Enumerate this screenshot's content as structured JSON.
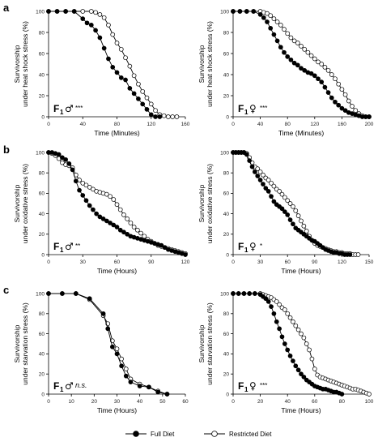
{
  "panel_letters": [
    "a",
    "b",
    "c"
  ],
  "legend": {
    "full": "Full Diet",
    "restricted": "Restricted Diet",
    "full_color": "#000000",
    "restricted_color": "#ffffff"
  },
  "chart_data": [
    {
      "type": "line",
      "panel": "a",
      "ylabel_lines": [
        "Survivorship",
        "under heat shock stress (%)"
      ],
      "xlabel": "Time (Minutes)",
      "xlim": [
        0,
        160
      ],
      "ylim": [
        0,
        100
      ],
      "xticks": [
        0,
        40,
        80,
        120,
        160
      ],
      "yticks": [
        0,
        20,
        40,
        60,
        80,
        100
      ],
      "annotation": {
        "main": "F",
        "sub": "1",
        "sym": "♂",
        "sig": "***",
        "sig_italic": false
      },
      "series": [
        {
          "name": "Full Diet",
          "x": [
            0,
            10,
            20,
            30,
            40,
            45,
            50,
            55,
            60,
            65,
            70,
            75,
            80,
            85,
            90,
            95,
            100,
            105,
            110,
            115,
            120,
            125,
            130
          ],
          "y": [
            100,
            100,
            100,
            100,
            93,
            89,
            87,
            82,
            75,
            65,
            55,
            47,
            42,
            37,
            35,
            27,
            22,
            17,
            12,
            7,
            2,
            0,
            0
          ]
        },
        {
          "name": "Restricted Diet",
          "x": [
            0,
            10,
            20,
            30,
            40,
            50,
            55,
            60,
            65,
            70,
            75,
            80,
            85,
            90,
            95,
            100,
            105,
            110,
            115,
            120,
            125,
            130,
            135,
            140,
            145,
            150
          ],
          "y": [
            100,
            100,
            100,
            100,
            100,
            100,
            99,
            97,
            94,
            87,
            78,
            70,
            64,
            56,
            48,
            39,
            31,
            24,
            18,
            12,
            6,
            2,
            1,
            0,
            0,
            0
          ]
        }
      ]
    },
    {
      "type": "line",
      "panel": "a",
      "ylabel_lines": [
        "Survivorship",
        "under heat shock stress (%)"
      ],
      "xlabel": "Time (Minutes)",
      "xlim": [
        0,
        200
      ],
      "ylim": [
        0,
        100
      ],
      "xticks": [
        0,
        40,
        80,
        120,
        160,
        200
      ],
      "yticks": [
        0,
        20,
        40,
        60,
        80,
        100
      ],
      "annotation": {
        "main": "F",
        "sub": "1",
        "sym": "♀",
        "sig": "***",
        "sig_italic": false
      },
      "series": [
        {
          "name": "Full Diet",
          "x": [
            0,
            10,
            20,
            30,
            40,
            45,
            50,
            55,
            60,
            65,
            70,
            75,
            80,
            85,
            90,
            95,
            100,
            105,
            110,
            115,
            120,
            125,
            130,
            135,
            140,
            145,
            150,
            155,
            160,
            165,
            170,
            175,
            180,
            185,
            190,
            195,
            200
          ],
          "y": [
            100,
            100,
            100,
            100,
            97,
            94,
            90,
            84,
            78,
            72,
            66,
            61,
            57,
            54,
            51,
            49,
            46,
            44,
            42,
            41,
            39,
            36,
            33,
            28,
            23,
            18,
            14,
            11,
            8,
            6,
            4,
            3,
            2,
            1,
            0,
            0,
            0
          ]
        },
        {
          "name": "Restricted Diet",
          "x": [
            0,
            10,
            20,
            30,
            40,
            45,
            50,
            55,
            60,
            65,
            70,
            75,
            80,
            85,
            90,
            95,
            100,
            105,
            110,
            115,
            120,
            125,
            130,
            135,
            140,
            145,
            150,
            155,
            160,
            165,
            170,
            175,
            180,
            185,
            190,
            195,
            200
          ],
          "y": [
            100,
            100,
            100,
            100,
            100,
            99,
            98,
            96,
            93,
            90,
            87,
            83,
            79,
            75,
            72,
            70,
            67,
            64,
            61,
            58,
            55,
            52,
            50,
            47,
            44,
            40,
            36,
            31,
            26,
            21,
            15,
            10,
            6,
            3,
            1,
            0,
            0
          ]
        }
      ]
    },
    {
      "type": "line",
      "panel": "b",
      "ylabel_lines": [
        "Survivorship",
        "under oxidative stress (%)"
      ],
      "xlabel": "Time (Hours)",
      "xlim": [
        0,
        120
      ],
      "ylim": [
        0,
        100
      ],
      "xticks": [
        0,
        30,
        60,
        90,
        120
      ],
      "yticks": [
        0,
        20,
        40,
        60,
        80,
        100
      ],
      "annotation": {
        "main": "F",
        "sub": "1",
        "sym": "♂",
        "sig": "**",
        "sig_italic": false
      },
      "series": [
        {
          "name": "Full Diet",
          "x": [
            0,
            3,
            6,
            9,
            12,
            15,
            18,
            21,
            24,
            27,
            30,
            33,
            36,
            39,
            42,
            45,
            48,
            51,
            54,
            57,
            60,
            63,
            66,
            69,
            72,
            75,
            78,
            81,
            84,
            87,
            90,
            93,
            96,
            99,
            102,
            105,
            108,
            111,
            114,
            117,
            120
          ],
          "y": [
            100,
            100,
            99,
            98,
            95,
            93,
            89,
            83,
            72,
            63,
            58,
            53,
            48,
            44,
            40,
            37,
            35,
            33,
            31,
            29,
            27,
            24,
            22,
            20,
            18,
            17,
            16,
            15,
            14,
            13,
            12,
            11,
            10,
            9,
            7,
            5,
            4,
            3,
            2,
            1,
            0
          ]
        },
        {
          "name": "Restricted Diet",
          "x": [
            0,
            3,
            6,
            9,
            12,
            15,
            18,
            21,
            24,
            27,
            30,
            33,
            36,
            39,
            42,
            45,
            48,
            51,
            54,
            57,
            60,
            63,
            66,
            69,
            72,
            75,
            78,
            81,
            84,
            87,
            90,
            93,
            96,
            99,
            102,
            105,
            108,
            111,
            114,
            117,
            120
          ],
          "y": [
            100,
            99,
            97,
            94,
            90,
            88,
            87,
            85,
            78,
            73,
            70,
            68,
            66,
            64,
            62,
            61,
            60,
            59,
            57,
            54,
            49,
            44,
            39,
            35,
            31,
            27,
            24,
            21,
            18,
            15,
            13,
            11,
            9,
            8,
            7,
            6,
            5,
            4,
            3,
            2,
            1
          ]
        }
      ]
    },
    {
      "type": "line",
      "panel": "b",
      "ylabel_lines": [
        "Survivorship",
        "under oxidative stress (%)"
      ],
      "xlabel": "Time (Hours)",
      "xlim": [
        0,
        150
      ],
      "ylim": [
        0,
        100
      ],
      "xticks": [
        0,
        30,
        60,
        90,
        120,
        150
      ],
      "yticks": [
        0,
        20,
        40,
        60,
        80,
        100
      ],
      "annotation": {
        "main": "F",
        "sub": "1",
        "sym": "♀",
        "sig": "*",
        "sig_italic": false
      },
      "series": [
        {
          "name": "Full Diet",
          "x": [
            0,
            3,
            6,
            9,
            12,
            15,
            18,
            21,
            24,
            27,
            30,
            33,
            36,
            39,
            42,
            45,
            48,
            51,
            54,
            57,
            60,
            63,
            66,
            69,
            72,
            75,
            78,
            81,
            84,
            87,
            90,
            93,
            96,
            99,
            102,
            105,
            108,
            111,
            114,
            117,
            120,
            123,
            126,
            129
          ],
          "y": [
            100,
            100,
            100,
            100,
            100,
            98,
            92,
            86,
            81,
            77,
            73,
            69,
            65,
            62,
            57,
            52,
            49,
            47,
            45,
            42,
            39,
            34,
            30,
            26,
            24,
            22,
            20,
            18,
            16,
            14,
            13,
            11,
            9,
            7,
            5,
            4,
            3,
            2,
            2,
            1,
            1,
            0,
            0,
            0
          ]
        },
        {
          "name": "Restricted Diet",
          "x": [
            0,
            3,
            6,
            9,
            12,
            15,
            18,
            21,
            24,
            27,
            30,
            33,
            36,
            39,
            42,
            45,
            48,
            51,
            54,
            57,
            60,
            63,
            66,
            69,
            72,
            75,
            78,
            81,
            84,
            87,
            90,
            93,
            96,
            99,
            102,
            105,
            108,
            111,
            114,
            117,
            120,
            123,
            126,
            129,
            132,
            135,
            138
          ],
          "y": [
            100,
            100,
            100,
            100,
            100,
            99,
            95,
            90,
            86,
            84,
            81,
            78,
            75,
            73,
            70,
            67,
            64,
            62,
            59,
            56,
            53,
            50,
            47,
            43,
            38,
            33,
            28,
            23,
            18,
            14,
            11,
            9,
            8,
            7,
            6,
            5,
            4,
            3,
            3,
            2,
            2,
            1,
            1,
            1,
            0,
            0,
            0
          ]
        }
      ]
    },
    {
      "type": "line",
      "panel": "c",
      "ylabel_lines": [
        "Survivorship",
        "under starvation stress (%)"
      ],
      "xlabel": "Time (Hours)",
      "xlim": [
        0,
        60
      ],
      "ylim": [
        0,
        100
      ],
      "xticks": [
        0,
        10,
        20,
        30,
        40,
        50,
        60
      ],
      "yticks": [
        0,
        20,
        40,
        60,
        80,
        100
      ],
      "annotation": {
        "main": "F",
        "sub": "1",
        "sym": "♂",
        "sig": "n.s.",
        "sig_italic": true
      },
      "series": [
        {
          "name": "Full Diet",
          "x": [
            0,
            6,
            12,
            18,
            24,
            26,
            28,
            30,
            32,
            34,
            36,
            40,
            44,
            48,
            52
          ],
          "y": [
            100,
            100,
            100,
            95,
            80,
            65,
            47,
            40,
            28,
            18,
            12,
            8,
            7,
            2,
            0
          ]
        },
        {
          "name": "Restricted Diet",
          "x": [
            0,
            6,
            12,
            18,
            24,
            26,
            28,
            30,
            32,
            34,
            36,
            40,
            44,
            48,
            52
          ],
          "y": [
            100,
            100,
            100,
            94,
            78,
            70,
            53,
            45,
            35,
            25,
            15,
            10,
            7,
            3,
            0
          ]
        }
      ]
    },
    {
      "type": "line",
      "panel": "c",
      "ylabel_lines": [
        "Survivorship",
        "under starvation stress (%)"
      ],
      "xlabel": "Time (Hours)",
      "xlim": [
        0,
        100
      ],
      "ylim": [
        0,
        100
      ],
      "xticks": [
        0,
        20,
        40,
        60,
        80,
        100
      ],
      "yticks": [
        0,
        20,
        40,
        60,
        80,
        100
      ],
      "annotation": {
        "main": "F",
        "sub": "1",
        "sym": "♀",
        "sig": "***",
        "sig_italic": false
      },
      "series": [
        {
          "name": "Full Diet",
          "x": [
            0,
            4,
            8,
            12,
            16,
            20,
            22,
            24,
            26,
            28,
            30,
            32,
            34,
            36,
            38,
            40,
            42,
            44,
            46,
            48,
            50,
            52,
            54,
            56,
            58,
            60,
            62,
            64,
            66,
            68,
            70,
            72,
            74,
            76,
            78,
            80
          ],
          "y": [
            100,
            100,
            100,
            100,
            100,
            99,
            97,
            95,
            92,
            87,
            80,
            72,
            65,
            57,
            50,
            44,
            38,
            33,
            28,
            24,
            20,
            17,
            14,
            12,
            10,
            8,
            7,
            6,
            5,
            5,
            4,
            3,
            2,
            2,
            1,
            0
          ]
        },
        {
          "name": "Restricted Diet",
          "x": [
            0,
            4,
            8,
            12,
            16,
            20,
            22,
            24,
            26,
            28,
            30,
            32,
            34,
            36,
            38,
            40,
            42,
            44,
            46,
            48,
            50,
            52,
            54,
            56,
            58,
            60,
            62,
            64,
            66,
            68,
            70,
            72,
            74,
            76,
            78,
            80,
            82,
            84,
            86,
            88,
            90,
            92,
            94,
            96,
            98,
            100
          ],
          "y": [
            100,
            100,
            100,
            100,
            100,
            100,
            99,
            98,
            97,
            96,
            94,
            92,
            89,
            86,
            84,
            80,
            76,
            72,
            68,
            64,
            60,
            56,
            50,
            44,
            35,
            25,
            19,
            17,
            16,
            15,
            14,
            13,
            12,
            11,
            10,
            9,
            8,
            7,
            6,
            5,
            5,
            4,
            3,
            2,
            1,
            0
          ]
        }
      ]
    }
  ]
}
